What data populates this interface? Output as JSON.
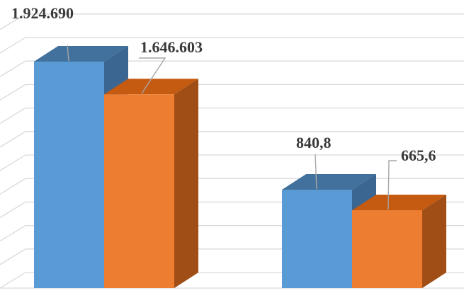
{
  "chart_data": {
    "type": "bar",
    "style": "3d-clustered-column",
    "categories": [
      "",
      ""
    ],
    "series": [
      {
        "values": [
          1924690,
          840.8
        ],
        "labels": [
          "1.924.690",
          "840,8"
        ],
        "color": "#5b9bd5",
        "top_color": "#41719c",
        "side_color": "#3a6691"
      },
      {
        "values": [
          1646603,
          665.6
        ],
        "labels": [
          "1.646.603",
          "665,6"
        ],
        "color": "#ed7d31",
        "top_color": "#c55a11",
        "side_color": "#a04e16"
      }
    ],
    "grid": true,
    "legend": "none",
    "gridline_color": "#d9d9d9",
    "floor_color": "#d9d9d9"
  }
}
